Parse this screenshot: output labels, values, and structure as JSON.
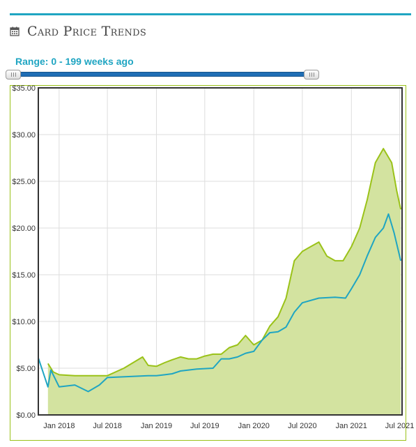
{
  "header": {
    "title": "Card Price Trends",
    "icon": "calendar-icon"
  },
  "range": {
    "label": "Range: 0 - 199 weeks ago",
    "min_weeks": 0,
    "max_weeks": 199
  },
  "colors": {
    "accent": "#1fa5c2",
    "green": "#9ac218",
    "green_fill": "#d3e3a0",
    "blue": "#1fa5c2"
  },
  "chart_data": {
    "type": "area",
    "title": "",
    "xlabel": "",
    "ylabel": "",
    "ylim": [
      0,
      35
    ],
    "yticks": [
      "$0.00",
      "$5.00",
      "$10.00",
      "$15.00",
      "$20.00",
      "$25.00",
      "$30.00",
      "$35.00"
    ],
    "xticks": [
      "Jan 2018",
      "Jul 2018",
      "Jan 2019",
      "Jul 2019",
      "Jan 2020",
      "Jul 2020",
      "Jan 2021",
      "Jul 2021"
    ],
    "xlim": [
      "2017-10-15",
      "2021-07-10"
    ],
    "grid": true,
    "series": [
      {
        "color": "#9ac218",
        "filled": true,
        "points": [
          [
            "2017-11-20",
            5.5
          ],
          [
            "2017-12-10",
            4.6
          ],
          [
            "2018-01-01",
            4.3
          ],
          [
            "2018-03-01",
            4.2
          ],
          [
            "2018-05-01",
            4.2
          ],
          [
            "2018-07-01",
            4.2
          ],
          [
            "2018-09-01",
            5.0
          ],
          [
            "2018-11-10",
            6.2
          ],
          [
            "2018-12-01",
            5.3
          ],
          [
            "2019-01-01",
            5.2
          ],
          [
            "2019-02-01",
            5.6
          ],
          [
            "2019-03-01",
            5.9
          ],
          [
            "2019-04-01",
            6.2
          ],
          [
            "2019-05-01",
            6.0
          ],
          [
            "2019-06-01",
            6.0
          ],
          [
            "2019-07-01",
            6.3
          ],
          [
            "2019-08-01",
            6.5
          ],
          [
            "2019-09-01",
            6.5
          ],
          [
            "2019-10-01",
            7.2
          ],
          [
            "2019-11-01",
            7.5
          ],
          [
            "2019-12-01",
            8.5
          ],
          [
            "2020-01-01",
            7.5
          ],
          [
            "2020-02-01",
            8.0
          ],
          [
            "2020-03-01",
            9.5
          ],
          [
            "2020-04-01",
            10.5
          ],
          [
            "2020-05-01",
            12.5
          ],
          [
            "2020-06-01",
            16.5
          ],
          [
            "2020-07-01",
            17.5
          ],
          [
            "2020-08-01",
            18.0
          ],
          [
            "2020-09-01",
            18.5
          ],
          [
            "2020-10-01",
            17.0
          ],
          [
            "2020-11-01",
            16.5
          ],
          [
            "2020-12-01",
            16.5
          ],
          [
            "2021-01-01",
            18.0
          ],
          [
            "2021-02-01",
            20.0
          ],
          [
            "2021-03-01",
            23.0
          ],
          [
            "2021-04-01",
            27.0
          ],
          [
            "2021-05-01",
            28.5
          ],
          [
            "2021-06-01",
            27.0
          ],
          [
            "2021-06-20",
            24.0
          ],
          [
            "2021-07-05",
            22.0
          ]
        ]
      },
      {
        "color": "#1fa5c2",
        "filled": false,
        "points": [
          [
            "2017-10-15",
            6.1
          ],
          [
            "2017-11-20",
            3.0
          ],
          [
            "2017-12-01",
            4.8
          ],
          [
            "2018-01-01",
            3.0
          ],
          [
            "2018-03-01",
            3.2
          ],
          [
            "2018-04-20",
            2.5
          ],
          [
            "2018-06-01",
            3.2
          ],
          [
            "2018-07-01",
            4.0
          ],
          [
            "2018-12-01",
            4.2
          ],
          [
            "2019-01-01",
            4.2
          ],
          [
            "2019-02-01",
            4.3
          ],
          [
            "2019-03-01",
            4.4
          ],
          [
            "2019-04-01",
            4.7
          ],
          [
            "2019-06-01",
            4.9
          ],
          [
            "2019-08-01",
            5.0
          ],
          [
            "2019-09-01",
            6.0
          ],
          [
            "2019-10-01",
            6.0
          ],
          [
            "2019-11-01",
            6.2
          ],
          [
            "2019-12-01",
            6.6
          ],
          [
            "2020-01-01",
            6.8
          ],
          [
            "2020-02-01",
            8.0
          ],
          [
            "2020-03-01",
            8.8
          ],
          [
            "2020-04-01",
            8.9
          ],
          [
            "2020-05-01",
            9.4
          ],
          [
            "2020-06-01",
            11.0
          ],
          [
            "2020-07-01",
            12.0
          ],
          [
            "2020-09-01",
            12.5
          ],
          [
            "2020-11-01",
            12.6
          ],
          [
            "2020-12-10",
            12.5
          ],
          [
            "2021-01-01",
            13.5
          ],
          [
            "2021-02-01",
            15.0
          ],
          [
            "2021-03-01",
            17.0
          ],
          [
            "2021-04-01",
            19.0
          ],
          [
            "2021-05-01",
            20.0
          ],
          [
            "2021-05-20",
            21.5
          ],
          [
            "2021-06-10",
            19.5
          ],
          [
            "2021-07-05",
            16.5
          ]
        ]
      }
    ]
  }
}
